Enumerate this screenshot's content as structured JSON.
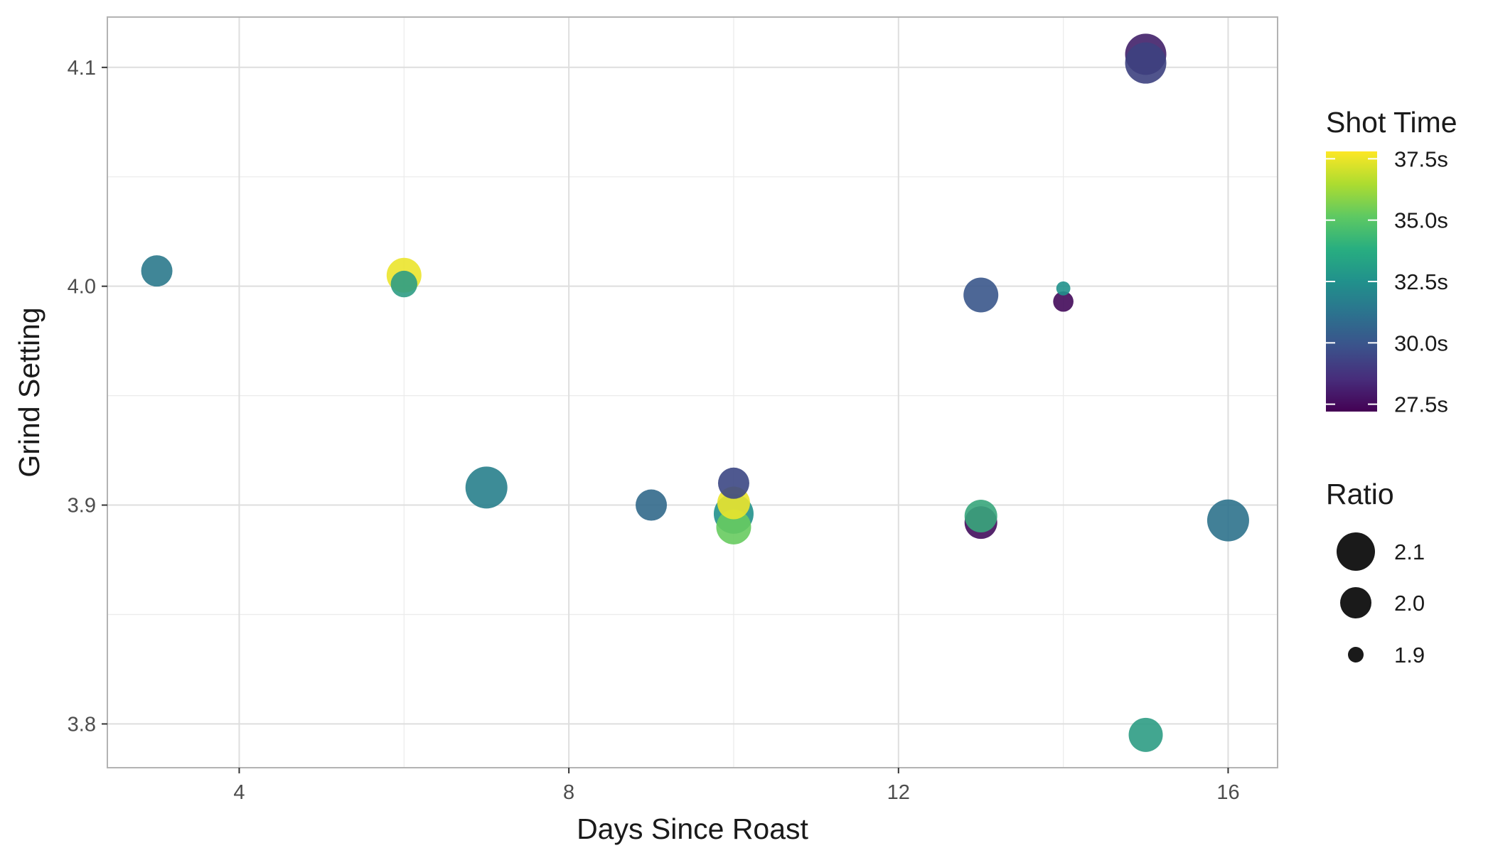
{
  "chart_data": {
    "type": "scatter",
    "title": "",
    "xlabel": "Days Since Roast",
    "ylabel": "Grind Setting",
    "xlim": [
      2.4,
      16.6
    ],
    "ylim": [
      3.78,
      4.123
    ],
    "x_ticks": [
      4,
      8,
      12,
      16
    ],
    "y_ticks": [
      3.8,
      3.9,
      4.0,
      4.1
    ],
    "x_tick_labels": [
      "4",
      "8",
      "12",
      "16"
    ],
    "y_tick_labels": [
      "3.8",
      "3.9",
      "4.0",
      "4.1"
    ],
    "grid": true,
    "color_legend": {
      "title": "Shot Time",
      "range": [
        27.2,
        37.8
      ],
      "ticks": [
        37.5,
        35.0,
        32.5,
        30.0,
        27.5
      ],
      "tick_labels": [
        "37.5s",
        "35.0s",
        "32.5s",
        "30.0s",
        "27.5s"
      ],
      "palette": [
        "#440154",
        "#3b528b",
        "#21918c",
        "#5ec962",
        "#fde725"
      ]
    },
    "size_legend": {
      "title": "Ratio",
      "values": [
        2.1,
        2.0,
        1.9
      ],
      "labels": [
        "2.1",
        "2.0",
        "1.9"
      ]
    },
    "points": [
      {
        "x": 3,
        "y": 4.007,
        "shot_time": 31.5,
        "ratio": 2.0
      },
      {
        "x": 6,
        "y": 4.005,
        "shot_time": 37.5,
        "ratio": 2.05
      },
      {
        "x": 6,
        "y": 4.001,
        "shot_time": 33.0,
        "ratio": 1.97
      },
      {
        "x": 7,
        "y": 3.908,
        "shot_time": 31.8,
        "ratio": 2.15
      },
      {
        "x": 9,
        "y": 3.9,
        "shot_time": 30.8,
        "ratio": 2.0
      },
      {
        "x": 10,
        "y": 3.91,
        "shot_time": 29.5,
        "ratio": 2.0
      },
      {
        "x": 10,
        "y": 3.901,
        "shot_time": 37.5,
        "ratio": 2.02
      },
      {
        "x": 10,
        "y": 3.89,
        "shot_time": 35.3,
        "ratio": 2.05
      },
      {
        "x": 10,
        "y": 3.896,
        "shot_time": 32.5,
        "ratio": 2.12
      },
      {
        "x": 13,
        "y": 3.996,
        "shot_time": 30.0,
        "ratio": 2.05
      },
      {
        "x": 14,
        "y": 3.999,
        "shot_time": 32.5,
        "ratio": 1.89
      },
      {
        "x": 14,
        "y": 3.993,
        "shot_time": 27.5,
        "ratio": 1.93
      },
      {
        "x": 13,
        "y": 3.892,
        "shot_time": 27.6,
        "ratio": 2.02
      },
      {
        "x": 13,
        "y": 3.895,
        "shot_time": 33.5,
        "ratio": 2.02
      },
      {
        "x": 15,
        "y": 4.106,
        "shot_time": 28.2,
        "ratio": 2.14
      },
      {
        "x": 15,
        "y": 4.102,
        "shot_time": 29.3,
        "ratio": 2.14
      },
      {
        "x": 15,
        "y": 3.795,
        "shot_time": 33.0,
        "ratio": 2.04
      },
      {
        "x": 16,
        "y": 3.893,
        "shot_time": 31.2,
        "ratio": 2.15
      }
    ]
  }
}
